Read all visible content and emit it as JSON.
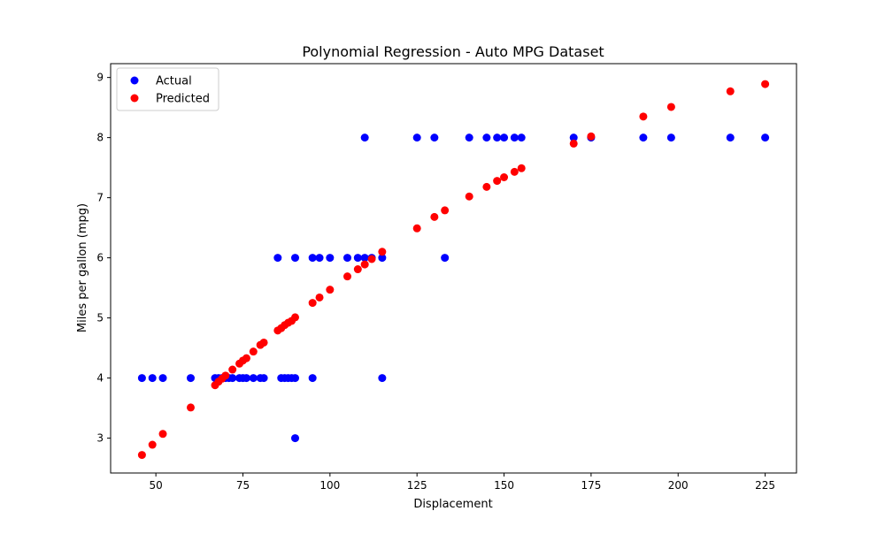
{
  "chart_data": {
    "type": "scatter",
    "title": "Polynomial Regression - Auto MPG Dataset",
    "xlabel": "Displacement",
    "ylabel": "Miles per gallon (mpg)",
    "xlim": [
      37,
      234
    ],
    "ylim": [
      2.42,
      9.23
    ],
    "xticks": [
      50,
      75,
      100,
      125,
      150,
      175,
      200,
      225
    ],
    "yticks": [
      3,
      4,
      5,
      6,
      7,
      8,
      9
    ],
    "grid": false,
    "legend_position": "top-left",
    "series": [
      {
        "name": "Actual",
        "color": "#0000ff",
        "points": [
          [
            46,
            4
          ],
          [
            49,
            4
          ],
          [
            52,
            4
          ],
          [
            60,
            4
          ],
          [
            67,
            4
          ],
          [
            68,
            4
          ],
          [
            69,
            4
          ],
          [
            70,
            4
          ],
          [
            71,
            4
          ],
          [
            72,
            4
          ],
          [
            74,
            4
          ],
          [
            75,
            4
          ],
          [
            76,
            4
          ],
          [
            78,
            4
          ],
          [
            80,
            4
          ],
          [
            81,
            4
          ],
          [
            86,
            4
          ],
          [
            87,
            4
          ],
          [
            88,
            4
          ],
          [
            89,
            4
          ],
          [
            90,
            4
          ],
          [
            95,
            4
          ],
          [
            115,
            4
          ],
          [
            90,
            3
          ],
          [
            85,
            6
          ],
          [
            90,
            6
          ],
          [
            95,
            6
          ],
          [
            97,
            6
          ],
          [
            100,
            6
          ],
          [
            105,
            6
          ],
          [
            108,
            6
          ],
          [
            110,
            6
          ],
          [
            112,
            6
          ],
          [
            115,
            6
          ],
          [
            133,
            6
          ],
          [
            110,
            8
          ],
          [
            125,
            8
          ],
          [
            130,
            8
          ],
          [
            140,
            8
          ],
          [
            145,
            8
          ],
          [
            148,
            8
          ],
          [
            150,
            8
          ],
          [
            153,
            8
          ],
          [
            155,
            8
          ],
          [
            170,
            8
          ],
          [
            175,
            8
          ],
          [
            190,
            8
          ],
          [
            198,
            8
          ],
          [
            215,
            8
          ],
          [
            225,
            8
          ]
        ]
      },
      {
        "name": "Predicted",
        "color": "#ff0000",
        "points": [
          [
            46,
            2.72
          ],
          [
            49,
            2.89
          ],
          [
            52,
            3.07
          ],
          [
            60,
            3.51
          ],
          [
            67,
            3.88
          ],
          [
            68,
            3.94
          ],
          [
            69,
            3.99
          ],
          [
            70,
            4.04
          ],
          [
            72,
            4.14
          ],
          [
            74,
            4.24
          ],
          [
            75,
            4.29
          ],
          [
            76,
            4.33
          ],
          [
            78,
            4.44
          ],
          [
            80,
            4.55
          ],
          [
            81,
            4.59
          ],
          [
            85,
            4.79
          ],
          [
            86,
            4.83
          ],
          [
            87,
            4.88
          ],
          [
            88,
            4.92
          ],
          [
            89,
            4.95
          ],
          [
            90,
            5.01
          ],
          [
            95,
            5.25
          ],
          [
            97,
            5.34
          ],
          [
            100,
            5.47
          ],
          [
            105,
            5.69
          ],
          [
            108,
            5.81
          ],
          [
            110,
            5.89
          ],
          [
            112,
            5.98
          ],
          [
            115,
            6.1
          ],
          [
            125,
            6.49
          ],
          [
            130,
            6.68
          ],
          [
            133,
            6.79
          ],
          [
            140,
            7.02
          ],
          [
            145,
            7.18
          ],
          [
            148,
            7.28
          ],
          [
            150,
            7.34
          ],
          [
            153,
            7.43
          ],
          [
            155,
            7.49
          ],
          [
            170,
            7.9
          ],
          [
            175,
            8.02
          ],
          [
            190,
            8.35
          ],
          [
            198,
            8.51
          ],
          [
            215,
            8.77
          ],
          [
            225,
            8.89
          ]
        ]
      }
    ]
  }
}
